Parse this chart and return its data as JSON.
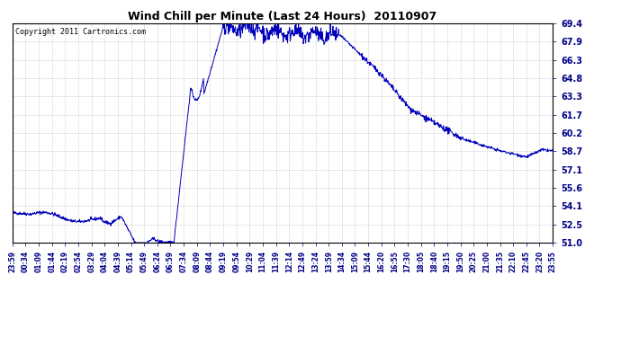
{
  "title": "Wind Chill per Minute (Last 24 Hours)  20110907",
  "copyright_text": "Copyright 2011 Cartronics.com",
  "line_color": "#0000bb",
  "background_color": "#ffffff",
  "grid_color": "#bbbbbb",
  "ylim": [
    51.0,
    69.4
  ],
  "yticks": [
    51.0,
    52.5,
    54.1,
    55.6,
    57.1,
    58.7,
    60.2,
    61.7,
    63.3,
    64.8,
    66.3,
    67.9,
    69.4
  ],
  "xtick_labels": [
    "23:59",
    "00:34",
    "01:09",
    "01:44",
    "02:19",
    "02:54",
    "03:29",
    "04:04",
    "04:39",
    "05:14",
    "05:49",
    "06:24",
    "06:59",
    "07:34",
    "08:09",
    "08:44",
    "09:19",
    "09:54",
    "10:29",
    "11:04",
    "11:39",
    "12:14",
    "12:49",
    "13:24",
    "13:59",
    "14:34",
    "15:09",
    "15:44",
    "16:20",
    "16:55",
    "17:30",
    "18:05",
    "18:40",
    "19:15",
    "19:50",
    "20:25",
    "21:00",
    "21:35",
    "22:10",
    "22:45",
    "23:20",
    "23:55"
  ],
  "n_points": 1440
}
